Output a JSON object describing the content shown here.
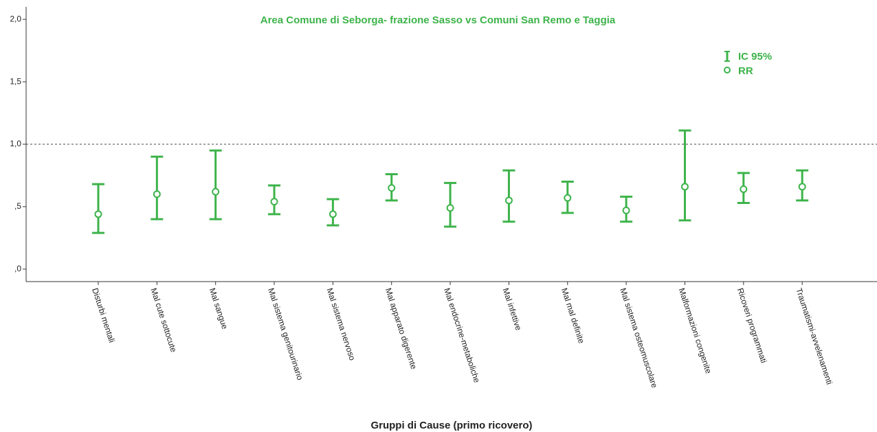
{
  "chart_data": {
    "type": "errorbar",
    "title": "Area Comune di Seborga- frazione Sasso  vs Comuni San Remo e Taggia",
    "x_label": "Gruppi di Cause (primo ricovero)",
    "categories": [
      "Disturbi mentali",
      "Mal cute sottocute",
      "Mal sangue",
      "Mal sistema genitourinario",
      "Mal sistema nervoso",
      "Mal apparato digerente",
      "Mal endocrine-metaboliche",
      "Mal infettive",
      "Mal mal definite",
      "Mal sistema osteomuscolare",
      "Malformazioni congenite",
      "Ricoveri programmati",
      "Traumatismi-avvelenamenti"
    ],
    "series": [
      {
        "name": "IC 95%",
        "color": "#3db34a",
        "lower": [
          0.29,
          0.4,
          0.4,
          0.44,
          0.35,
          0.55,
          0.34,
          0.38,
          0.45,
          0.38,
          0.39,
          0.53,
          0.55
        ],
        "upper": [
          0.68,
          0.9,
          0.95,
          0.67,
          0.56,
          0.76,
          0.69,
          0.79,
          0.7,
          0.58,
          1.11,
          0.77,
          0.79
        ]
      },
      {
        "name": "RR",
        "color": "#3db34a",
        "values": [
          0.44,
          0.6,
          0.62,
          0.54,
          0.44,
          0.65,
          0.49,
          0.55,
          0.57,
          0.47,
          0.66,
          0.64,
          0.66
        ]
      }
    ],
    "ylim": [
      -0.1,
      2.1
    ],
    "yticks": [
      {
        "value": 0,
        "label": ",0"
      },
      {
        "value": 0.5,
        "label": ",5"
      },
      {
        "value": 1,
        "label": "1,0"
      },
      {
        "value": 1.5,
        "label": "1,5"
      },
      {
        "value": 2,
        "label": "2,0"
      }
    ],
    "reference_line": 1,
    "grid": false,
    "legend": "upper right"
  }
}
